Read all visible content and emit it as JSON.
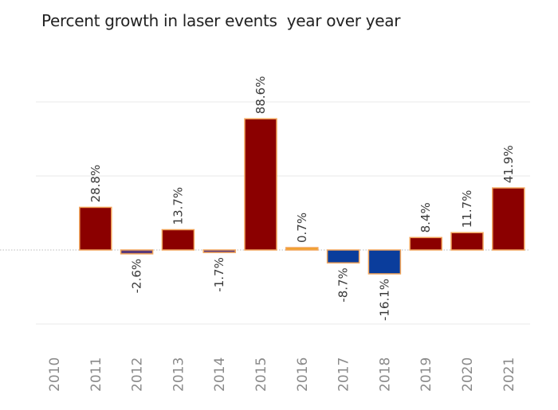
{
  "chart_data": {
    "type": "bar",
    "title": "Percent growth in laser events  year over year",
    "categories": [
      "2010",
      "2011",
      "2012",
      "2013",
      "2014",
      "2015",
      "2016",
      "2017",
      "2018",
      "2019",
      "2020",
      "2021"
    ],
    "values": [
      null,
      28.8,
      -2.6,
      13.7,
      -1.7,
      88.6,
      0.7,
      -8.7,
      -16.1,
      8.4,
      11.7,
      41.9
    ],
    "data_labels": [
      "",
      "28.8%",
      "-2.6%",
      "13.7%",
      "-1.7%",
      "88.6%",
      "0.7%",
      "-8.7%",
      "-16.1%",
      "8.4%",
      "11.7%",
      "41.9%"
    ],
    "ylim": [
      -50,
      100
    ],
    "grid": true,
    "legend": "none",
    "colors": {
      "positive": "#8b0000",
      "negative": "#0a3d9c",
      "small": "#f0a020",
      "outline": "#f2a45a",
      "grid": "#e8e8e8",
      "zero_line": "#bbbbbb"
    }
  }
}
